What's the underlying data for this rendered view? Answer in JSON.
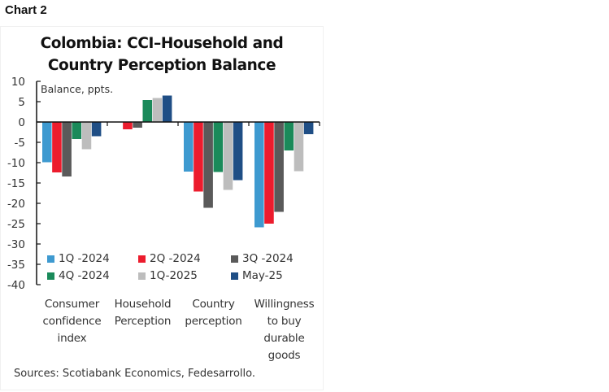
{
  "header": {
    "chart_label": "Chart 2"
  },
  "footer": {
    "source": "Sources: Scotiabank Economics, Fedesarrollo."
  },
  "chart_data": {
    "type": "bar",
    "title": "Colombia: CCI–Household and Country Perception Balance",
    "title_lines": [
      "Colombia: CCI–Household and",
      "Country Perception Balance"
    ],
    "ylabel": "Balance, ppts.",
    "xlabel": "",
    "ylim": [
      -40,
      10
    ],
    "yticks": [
      10,
      5,
      0,
      -5,
      -10,
      -15,
      -20,
      -25,
      -30,
      -35,
      -40
    ],
    "grid": false,
    "legend_position": "bottom-left-inside",
    "categories": [
      "Consumer\nconfidence\nindex",
      "Household\nPerception",
      "Country\nperception",
      "Willingness\nto buy\ndurable\ngoods"
    ],
    "series": [
      {
        "name": "1Q -2024",
        "color": "#3E9AD0",
        "values": [
          -9.9,
          0.0,
          -12.2,
          -25.9
        ]
      },
      {
        "name": "2Q -2024",
        "color": "#EC1C2D",
        "values": [
          -12.4,
          -1.8,
          -17.1,
          -25.0
        ]
      },
      {
        "name": "3Q -2024",
        "color": "#5A5A5A",
        "values": [
          -13.4,
          -1.4,
          -21.1,
          -22.1
        ]
      },
      {
        "name": "4Q -2024",
        "color": "#1A8A5A",
        "values": [
          -4.2,
          5.4,
          -12.3,
          -7.0
        ]
      },
      {
        "name": "1Q-2025",
        "color": "#BDBDBD",
        "values": [
          -6.7,
          5.9,
          -16.7,
          -12.1
        ]
      },
      {
        "name": "May-25",
        "color": "#1F4E85",
        "values": [
          -3.5,
          6.5,
          -14.3,
          -3.0
        ]
      }
    ]
  }
}
